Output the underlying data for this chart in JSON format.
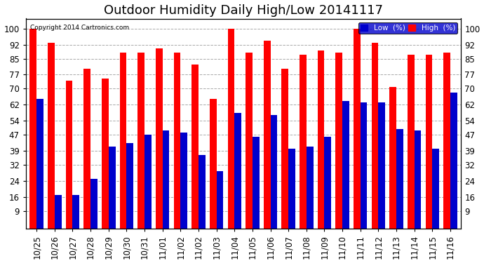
{
  "title": "Outdoor Humidity Daily High/Low 20141117",
  "copyright": "Copyright 2014 Cartronics.com",
  "categories": [
    "10/25",
    "10/26",
    "10/27",
    "10/28",
    "10/29",
    "10/30",
    "10/31",
    "11/01",
    "11/02",
    "11/02",
    "11/03",
    "11/04",
    "11/05",
    "11/06",
    "11/07",
    "11/08",
    "11/09",
    "11/10",
    "11/11",
    "11/12",
    "11/13",
    "11/14",
    "11/15",
    "11/16"
  ],
  "high_values": [
    100,
    93,
    74,
    80,
    75,
    88,
    88,
    90,
    88,
    82,
    65,
    100,
    88,
    94,
    80,
    87,
    89,
    88,
    100,
    93,
    71,
    87,
    87,
    88
  ],
  "low_values": [
    65,
    17,
    17,
    25,
    41,
    43,
    47,
    49,
    48,
    37,
    29,
    58,
    46,
    57,
    40,
    41,
    46,
    64,
    63,
    63,
    50,
    49,
    40,
    68
  ],
  "high_color": "#ff0000",
  "low_color": "#0000cc",
  "bg_color": "#ffffff",
  "plot_bg_color": "#ffffff",
  "grid_color": "#aaaaaa",
  "yticks": [
    9,
    16,
    24,
    32,
    39,
    47,
    54,
    62,
    70,
    77,
    85,
    92,
    100
  ],
  "ylim": [
    0,
    105
  ],
  "bar_width": 0.38,
  "title_fontsize": 13,
  "tick_fontsize": 8.5,
  "legend_low_label": "Low  (%)",
  "legend_high_label": "High  (%)"
}
